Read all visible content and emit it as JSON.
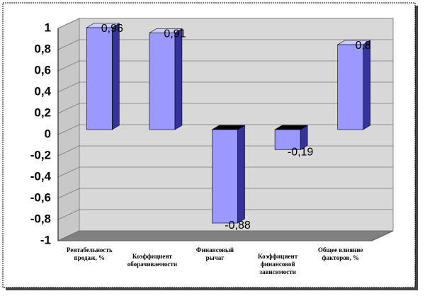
{
  "chart_data": {
    "type": "bar3d",
    "categories": [
      "Рентабельность продаж, %",
      "Коэффициент оборачиваемости",
      "Финансовый рычаг",
      "Коэффициент финансовой зависимости",
      "Общее влияние факторов, %"
    ],
    "values": [
      0.96,
      0.91,
      -0.88,
      -0.19,
      0.8
    ],
    "value_labels": [
      "0,96",
      "0,91",
      "-0,88",
      "-0,19",
      "0,8"
    ],
    "color": "#9999ff",
    "ylim": [
      -1,
      1
    ],
    "yticks": [
      -1,
      {
        "value": -0.8,
        "label": "-0,8"
      },
      {
        "value": -0.6,
        "label": "-0,6"
      },
      {
        "value": -0.4,
        "label": "-0,4"
      },
      {
        "value": -0.2,
        "label": "-0,2"
      },
      0,
      {
        "value": 0.2,
        "label": "0,2"
      },
      {
        "value": 0.4,
        "label": "0,4"
      },
      {
        "value": 0.6,
        "label": "0,6"
      },
      {
        "value": 0.8,
        "label": "0,8"
      },
      1
    ],
    "grid": true
  }
}
